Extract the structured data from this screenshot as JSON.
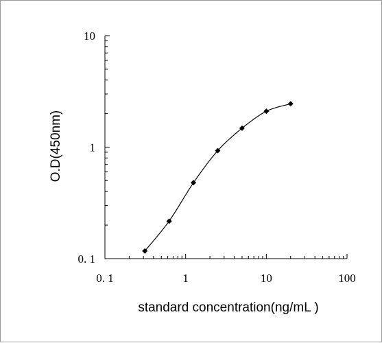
{
  "chart_data": {
    "type": "line",
    "x_scale": "log",
    "y_scale": "log",
    "xlim": [
      0.1,
      100
    ],
    "ylim": [
      0.1,
      10
    ],
    "x_ticks": [
      {
        "value": 0.1,
        "label": "0. 1"
      },
      {
        "value": 1,
        "label": "1"
      },
      {
        "value": 10,
        "label": "10"
      },
      {
        "value": 100,
        "label": "100"
      }
    ],
    "y_ticks": [
      {
        "value": 0.1,
        "label": "0. 1"
      },
      {
        "value": 1,
        "label": "1"
      },
      {
        "value": 10,
        "label": "10"
      }
    ],
    "xlabel": "standard concentration(ng/mL )",
    "ylabel": "O.D(450nm)",
    "grid": false,
    "series": [
      {
        "marker": "diamond",
        "color": "#000000",
        "x": [
          0.3125,
          0.625,
          1.25,
          2.5,
          5,
          10,
          20
        ],
        "y": [
          0.117,
          0.217,
          0.48,
          0.93,
          1.48,
          2.1,
          2.45
        ]
      }
    ]
  }
}
